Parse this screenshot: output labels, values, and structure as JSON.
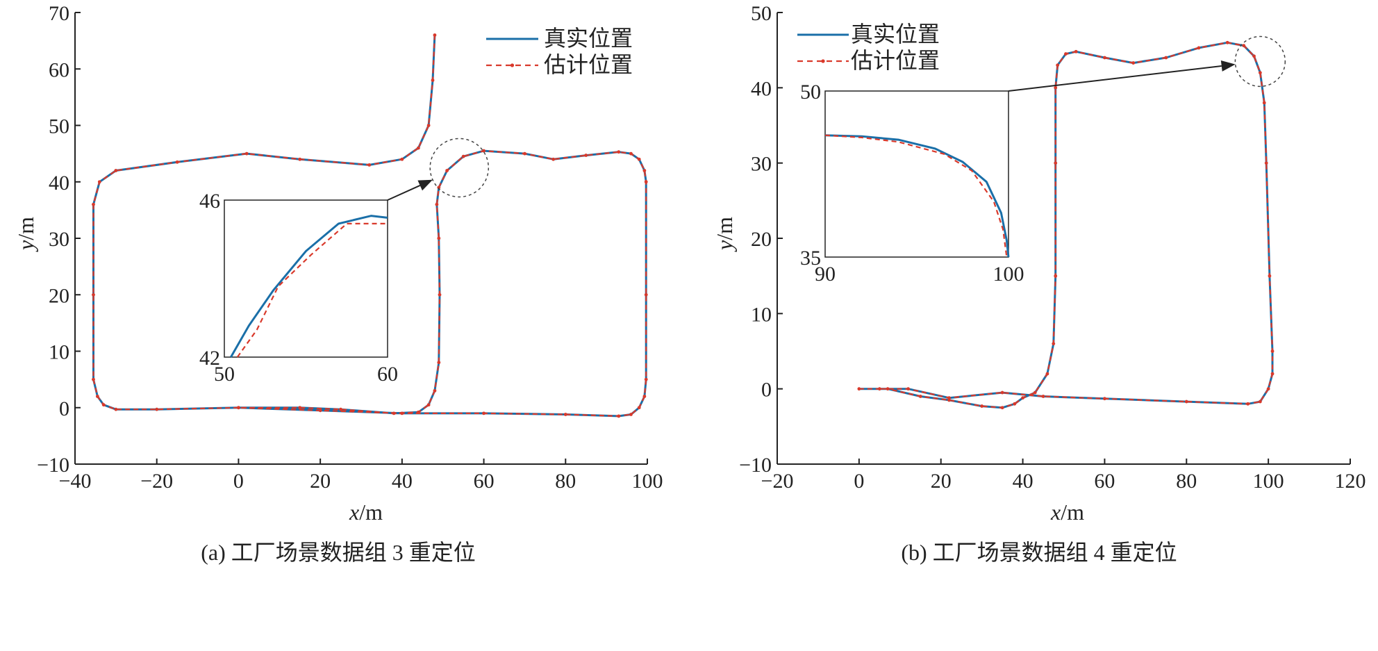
{
  "colors": {
    "true_line": "#1a6fa8",
    "est_line": "#d9392b",
    "axis": "#222222",
    "zoom_circle": "#444444"
  },
  "chart_data": [
    {
      "type": "line",
      "caption": "(a) 工厂场景数据组 3 重定位",
      "xlabel_var": "x",
      "xlabel_unit": "/m",
      "ylabel_var": "y",
      "ylabel_unit": "/m",
      "xlim": [
        -40,
        100
      ],
      "ylim": [
        -10,
        70
      ],
      "xticks": [
        "−40",
        "−20",
        "0",
        "20",
        "40",
        "60",
        "80",
        "100"
      ],
      "yticks": [
        "−10",
        "0",
        "10",
        "20",
        "30",
        "40",
        "50",
        "60",
        "70"
      ],
      "grid": false,
      "legend_position": "top-right",
      "series": [
        {
          "name": "真实位置",
          "style": "solid",
          "points": [
            [
              48,
              66
            ],
            [
              47.5,
              58
            ],
            [
              46.5,
              50
            ],
            [
              44,
              46
            ],
            [
              40,
              44
            ],
            [
              32,
              43
            ],
            [
              15,
              44
            ],
            [
              2,
              45
            ],
            [
              -15,
              43.5
            ],
            [
              -30,
              42
            ],
            [
              -34,
              40
            ],
            [
              -35.5,
              36
            ],
            [
              -35.5,
              20
            ],
            [
              -35.5,
              5
            ],
            [
              -34.5,
              2
            ],
            [
              -33,
              0.5
            ],
            [
              -30,
              -0.3
            ],
            [
              -20,
              -0.3
            ],
            [
              0,
              0
            ],
            [
              15,
              0
            ],
            [
              25,
              -0.3
            ],
            [
              38,
              -1
            ],
            [
              44,
              -0.8
            ],
            [
              46.5,
              0.5
            ],
            [
              48,
              3
            ],
            [
              49,
              8
            ],
            [
              49.2,
              20
            ],
            [
              49,
              30
            ],
            [
              48.5,
              36
            ],
            [
              49,
              39
            ],
            [
              51,
              42
            ],
            [
              55,
              44.5
            ],
            [
              60,
              45.5
            ],
            [
              70,
              45
            ],
            [
              77,
              44
            ],
            [
              85,
              44.7
            ],
            [
              93,
              45.3
            ],
            [
              96,
              45
            ],
            [
              98,
              44
            ],
            [
              99.3,
              42
            ],
            [
              99.7,
              40
            ],
            [
              99.7,
              20
            ],
            [
              99.7,
              5
            ],
            [
              99.3,
              2
            ],
            [
              98,
              0
            ],
            [
              96,
              -1.2
            ],
            [
              93,
              -1.5
            ],
            [
              80,
              -1.2
            ],
            [
              60,
              -1
            ],
            [
              40,
              -1
            ],
            [
              20,
              -0.5
            ],
            [
              0,
              0
            ]
          ]
        },
        {
          "name": "估计位置",
          "style": "dashed-marker",
          "points": [
            [
              48,
              66
            ],
            [
              47.5,
              58
            ],
            [
              46.5,
              50
            ],
            [
              44,
              46
            ],
            [
              40,
              44
            ],
            [
              32,
              43
            ],
            [
              15,
              44
            ],
            [
              2,
              45
            ],
            [
              -15,
              43.5
            ],
            [
              -30,
              42
            ],
            [
              -34,
              40
            ],
            [
              -35.5,
              36
            ],
            [
              -35.5,
              20
            ],
            [
              -35.5,
              5
            ],
            [
              -34.5,
              2
            ],
            [
              -33,
              0.5
            ],
            [
              -30,
              -0.3
            ],
            [
              -20,
              -0.3
            ],
            [
              0,
              0
            ],
            [
              15,
              0
            ],
            [
              25,
              -0.3
            ],
            [
              38,
              -1
            ],
            [
              44,
              -0.8
            ],
            [
              46.5,
              0.5
            ],
            [
              48,
              3
            ],
            [
              49,
              8
            ],
            [
              49.2,
              20
            ],
            [
              49,
              30
            ],
            [
              48.5,
              36
            ],
            [
              49,
              39
            ],
            [
              51,
              42
            ],
            [
              55,
              44.5
            ],
            [
              60,
              45.5
            ],
            [
              70,
              45
            ],
            [
              77,
              44
            ],
            [
              85,
              44.7
            ],
            [
              93,
              45.3
            ],
            [
              96,
              45
            ],
            [
              98,
              44
            ],
            [
              99.3,
              42
            ],
            [
              99.7,
              40
            ],
            [
              99.7,
              20
            ],
            [
              99.7,
              5
            ],
            [
              99.3,
              2
            ],
            [
              98,
              0
            ],
            [
              96,
              -1.2
            ],
            [
              93,
              -1.5
            ],
            [
              80,
              -1.2
            ],
            [
              60,
              -1
            ],
            [
              40,
              -1
            ],
            [
              20,
              -0.5
            ],
            [
              0,
              0
            ]
          ]
        }
      ],
      "zoom_circle": {
        "cx": 54,
        "cy": 42.5,
        "r": 6
      },
      "inset": {
        "xlim": [
          50,
          60
        ],
        "ylim": [
          42,
          46
        ],
        "xticks": [
          "50",
          "60"
        ],
        "yticks": [
          "42",
          "46"
        ],
        "series": [
          {
            "name": "真实位置",
            "points": [
              [
                50.4,
                42
              ],
              [
                51.5,
                42.8
              ],
              [
                53,
                43.7
              ],
              [
                55,
                44.7
              ],
              [
                57,
                45.4
              ],
              [
                59,
                45.6
              ],
              [
                60,
                45.55
              ]
            ]
          },
          {
            "name": "估计位置",
            "points": [
              [
                50.8,
                42
              ],
              [
                52,
                42.7
              ],
              [
                53.3,
                43.8
              ],
              [
                55.3,
                44.6
              ],
              [
                57.5,
                45.4
              ],
              [
                60,
                45.4
              ]
            ]
          }
        ]
      }
    },
    {
      "type": "line",
      "caption": "(b) 工厂场景数据组 4 重定位",
      "xlabel_var": "x",
      "xlabel_unit": "/m",
      "ylabel_var": "y",
      "ylabel_unit": "/m",
      "xlim": [
        -20,
        120
      ],
      "ylim": [
        -10,
        50
      ],
      "xticks": [
        "−20",
        "0",
        "20",
        "40",
        "60",
        "80",
        "100",
        "120"
      ],
      "yticks": [
        "−10",
        "0",
        "10",
        "20",
        "30",
        "40",
        "50"
      ],
      "grid": false,
      "legend_position": "top-left",
      "series": [
        {
          "name": "真实位置",
          "style": "solid",
          "points": [
            [
              0,
              0
            ],
            [
              7,
              0
            ],
            [
              15,
              -1
            ],
            [
              22,
              -1.5
            ],
            [
              30,
              -2.3
            ],
            [
              35,
              -2.5
            ],
            [
              38,
              -2
            ],
            [
              40,
              -1.2
            ],
            [
              43,
              -0.5
            ],
            [
              46,
              2
            ],
            [
              47.5,
              6
            ],
            [
              48,
              15
            ],
            [
              48,
              30
            ],
            [
              48,
              40
            ],
            [
              48.5,
              43
            ],
            [
              50.5,
              44.5
            ],
            [
              53,
              44.8
            ],
            [
              60,
              44
            ],
            [
              67,
              43.3
            ],
            [
              75,
              44
            ],
            [
              83,
              45.3
            ],
            [
              90,
              46
            ],
            [
              94,
              45.6
            ],
            [
              96.5,
              44.2
            ],
            [
              98,
              42
            ],
            [
              99,
              38
            ],
            [
              99.5,
              30
            ],
            [
              100.3,
              15
            ],
            [
              101,
              5
            ],
            [
              101,
              2
            ],
            [
              100,
              0
            ],
            [
              98,
              -1.7
            ],
            [
              95,
              -2
            ],
            [
              80,
              -1.7
            ],
            [
              60,
              -1.3
            ],
            [
              45,
              -1
            ],
            [
              35,
              -0.5
            ],
            [
              22,
              -1.2
            ],
            [
              12,
              0
            ],
            [
              5,
              0
            ]
          ]
        },
        {
          "name": "估计位置",
          "style": "dashed-marker",
          "points": [
            [
              0,
              0
            ],
            [
              7,
              0
            ],
            [
              15,
              -1
            ],
            [
              22,
              -1.5
            ],
            [
              30,
              -2.3
            ],
            [
              35,
              -2.5
            ],
            [
              38,
              -2
            ],
            [
              40,
              -1.2
            ],
            [
              43,
              -0.5
            ],
            [
              46,
              2
            ],
            [
              47.5,
              6
            ],
            [
              48,
              15
            ],
            [
              48,
              30
            ],
            [
              48,
              40
            ],
            [
              48.5,
              43
            ],
            [
              50.5,
              44.5
            ],
            [
              53,
              44.8
            ],
            [
              60,
              44
            ],
            [
              67,
              43.3
            ],
            [
              75,
              44
            ],
            [
              83,
              45.3
            ],
            [
              90,
              46
            ],
            [
              94,
              45.6
            ],
            [
              96.5,
              44.2
            ],
            [
              98,
              42
            ],
            [
              99,
              38
            ],
            [
              99.5,
              30
            ],
            [
              100.3,
              15
            ],
            [
              101,
              5
            ],
            [
              101,
              2
            ],
            [
              100,
              0
            ],
            [
              98,
              -1.7
            ],
            [
              95,
              -2
            ],
            [
              80,
              -1.7
            ],
            [
              60,
              -1.3
            ],
            [
              45,
              -1
            ],
            [
              35,
              -0.5
            ],
            [
              22,
              -1.2
            ],
            [
              12,
              0
            ],
            [
              5,
              0
            ]
          ]
        }
      ],
      "zoom_circle": {
        "cx": 98,
        "cy": 43.5,
        "r": 4.3
      },
      "inset": {
        "xlim": [
          90,
          100
        ],
        "ylim": [
          35,
          50
        ],
        "xticks": [
          "90",
          "100"
        ],
        "yticks": [
          "35",
          "50"
        ],
        "series": [
          {
            "name": "真实位置",
            "points": [
              [
                90,
                46
              ],
              [
                92,
                45.9
              ],
              [
                94,
                45.6
              ],
              [
                96,
                44.8
              ],
              [
                97.5,
                43.6
              ],
              [
                98.8,
                41.8
              ],
              [
                99.6,
                39
              ],
              [
                99.9,
                36.5
              ],
              [
                100,
                35
              ]
            ]
          },
          {
            "name": "估计位置",
            "points": [
              [
                90,
                46
              ],
              [
                92,
                45.8
              ],
              [
                94,
                45.4
              ],
              [
                96.5,
                44.3
              ],
              [
                98,
                42.8
              ],
              [
                99.2,
                40
              ],
              [
                99.7,
                37.5
              ],
              [
                99.9,
                35
              ]
            ]
          }
        ]
      }
    }
  ]
}
